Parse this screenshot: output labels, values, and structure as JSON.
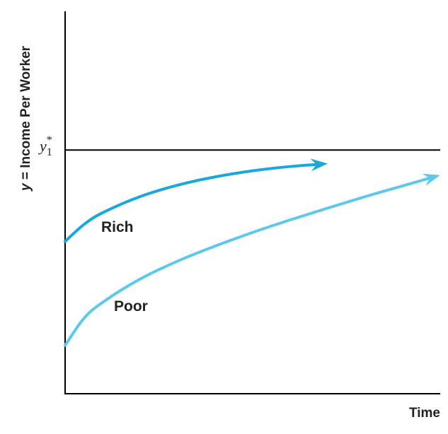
{
  "chart_data": {
    "type": "line",
    "xlabel": "Time",
    "ylabel": "y = Income Per Worker",
    "ylabel_var": "y",
    "ylabel_rest": " = Income Per Worker",
    "xlim": [
      0,
      10
    ],
    "ylim": [
      0,
      10
    ],
    "grid": false,
    "steady_state": {
      "value": 6.8,
      "symbol": "y",
      "superscript": "*",
      "subscript": "1",
      "color": "#000000"
    },
    "series": [
      {
        "name": "Rich",
        "color": "#1aa6de",
        "x": [
          0,
          0.5,
          1,
          2,
          3,
          4,
          5,
          6,
          7
        ],
        "y": [
          4.25,
          4.72,
          5.05,
          5.5,
          5.82,
          6.05,
          6.22,
          6.34,
          6.42
        ]
      },
      {
        "name": "Poor",
        "color": "#5ec8ec",
        "x": [
          0,
          0.5,
          1,
          2,
          3,
          4,
          5,
          6,
          7,
          8,
          9,
          10
        ],
        "y": [
          1.35,
          2.1,
          2.55,
          3.2,
          3.7,
          4.12,
          4.5,
          4.85,
          5.18,
          5.5,
          5.8,
          6.1
        ]
      }
    ]
  }
}
